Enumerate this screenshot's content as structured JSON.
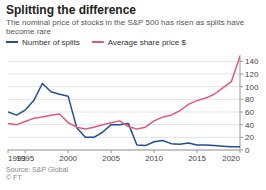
{
  "chart_data": {
    "type": "line",
    "title": "Splitting the difference",
    "subtitle": "The nominal price of stocks in the S&P 500 has risen as splits have become rare",
    "source": "Source: S&P Global\n© FT",
    "x": [
      1993,
      1994,
      1995,
      1996,
      1997,
      1998,
      1999,
      2000,
      2001,
      2002,
      2003,
      2004,
      2005,
      2006,
      2007,
      2008,
      2009,
      2010,
      2011,
      2012,
      2013,
      2014,
      2015,
      2016,
      2017,
      2018,
      2019,
      2020
    ],
    "xlim": [
      1993,
      2020
    ],
    "xticks": [
      1993,
      1995,
      2000,
      2005,
      2010,
      2015,
      2020
    ],
    "ylim": [
      0,
      150
    ],
    "y2lim": [
      0,
      150
    ],
    "y2ticks": [
      0,
      20,
      40,
      60,
      80,
      100,
      120,
      140
    ],
    "grid": true,
    "legend": "top",
    "series": [
      {
        "name": "Number of splits",
        "color": "#1f4e96",
        "values": [
          60,
          55,
          63,
          78,
          105,
          92,
          88,
          85,
          35,
          20,
          20,
          28,
          40,
          40,
          42,
          8,
          7,
          13,
          15,
          10,
          9,
          11,
          8,
          8,
          7,
          6,
          5,
          5
        ]
      },
      {
        "name": "Average share price $",
        "color": "#e05a78",
        "axis": "y2",
        "values": [
          42,
          40,
          45,
          50,
          52,
          55,
          57,
          43,
          36,
          33,
          36,
          40,
          43,
          46,
          37,
          33,
          36,
          46,
          52,
          55,
          62,
          72,
          78,
          82,
          88,
          98,
          108,
          148
        ]
      }
    ]
  }
}
